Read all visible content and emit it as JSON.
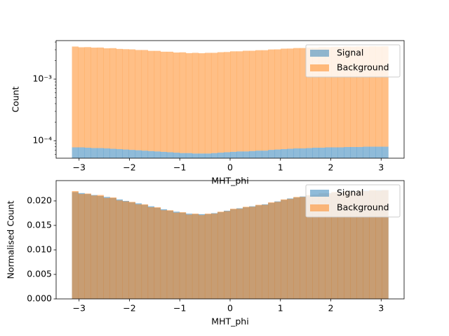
{
  "chart_data": [
    {
      "type": "histogram",
      "xlabel": "MHT_phi",
      "ylabel": "Count",
      "log_y": true,
      "stacked": true,
      "legend": "upper right",
      "xlim": [
        -3.456,
        3.456
      ],
      "xticks": [
        {
          "value": -3,
          "label": "−3"
        },
        {
          "value": -2,
          "label": "−2"
        },
        {
          "value": -1,
          "label": "−1"
        },
        0,
        1,
        2,
        3
      ],
      "ylim": [
        5.2e-05,
        0.00422
      ],
      "yticks": [
        {
          "value": 0.0001,
          "label": "10⁻⁴"
        },
        {
          "value": 0.001,
          "label": "10⁻³"
        }
      ],
      "bins": [
        -3.1416,
        -3.0159,
        -2.8903,
        -2.7646,
        -2.6389,
        -2.5133,
        -2.3876,
        -2.2619,
        -2.1363,
        -2.0106,
        -1.885,
        -1.7593,
        -1.6336,
        -1.508,
        -1.3823,
        -1.2566,
        -1.131,
        -1.0053,
        -0.8796,
        -0.754,
        -0.6283,
        -0.5027,
        -0.377,
        -0.2513,
        -0.1257,
        0,
        0.1257,
        0.2513,
        0.377,
        0.5027,
        0.6283,
        0.754,
        0.8796,
        1.0053,
        1.131,
        1.2566,
        1.3823,
        1.508,
        1.6336,
        1.7593,
        1.885,
        2.0106,
        2.1363,
        2.2619,
        2.3876,
        2.5133,
        2.6389,
        2.7646,
        2.8903,
        3.0159,
        3.1416
      ],
      "series": [
        {
          "name": "Signal",
          "color": "#1f77b4",
          "values": [
            7.8e-05,
            7.8e-05,
            7.7e-05,
            7.6e-05,
            7.6e-05,
            7.5e-05,
            7.4e-05,
            7.3e-05,
            7.2e-05,
            7.1e-05,
            7e-05,
            6.9e-05,
            6.8e-05,
            6.7e-05,
            6.6e-05,
            6.5e-05,
            6.4e-05,
            6.3e-05,
            6.3e-05,
            6.2e-05,
            6.2e-05,
            6.2e-05,
            6.3e-05,
            6.4e-05,
            6.5e-05,
            6.6e-05,
            6.7e-05,
            6.7e-05,
            6.8e-05,
            6.9e-05,
            6.9e-05,
            7.1e-05,
            7.2e-05,
            7.3e-05,
            7.4e-05,
            7.5e-05,
            7.5e-05,
            7.6e-05,
            7.7e-05,
            7.7e-05,
            7.8e-05,
            7.8e-05,
            7.8e-05,
            7.9e-05,
            7.9e-05,
            7.9e-05,
            8e-05,
            8e-05,
            8e-05,
            8e-05
          ]
        },
        {
          "name": "Background",
          "color": "#ff7f0e",
          "values": [
            0.0033,
            0.00321,
            0.00323,
            0.00317,
            0.00318,
            0.00309,
            0.00311,
            0.00302,
            0.00299,
            0.00297,
            0.0029,
            0.0029,
            0.00281,
            0.00281,
            0.00272,
            0.00272,
            0.00264,
            0.00266,
            0.00258,
            0.00261,
            0.00257,
            0.00261,
            0.00261,
            0.00267,
            0.00269,
            0.00276,
            0.00276,
            0.00282,
            0.00282,
            0.00288,
            0.00288,
            0.00296,
            0.00297,
            0.00305,
            0.00306,
            0.00312,
            0.00312,
            0.00318,
            0.00318,
            0.00324,
            0.00323,
            0.00327,
            0.00326,
            0.0033,
            0.00329,
            0.00332,
            0.0033,
            0.00333,
            0.00332,
            0.00333
          ]
        }
      ]
    },
    {
      "type": "histogram",
      "xlabel": "MHT_phi",
      "ylabel": "Normalised Count",
      "log_y": false,
      "stacked": false,
      "legend": "upper right",
      "xlim": [
        -3.456,
        3.456
      ],
      "xticks": [
        {
          "value": -3,
          "label": "−3"
        },
        {
          "value": -2,
          "label": "−2"
        },
        {
          "value": -1,
          "label": "−1"
        },
        0,
        1,
        2,
        3
      ],
      "ylim": [
        0,
        0.02414
      ],
      "yticks": [
        {
          "value": 0,
          "label": "0.000"
        },
        {
          "value": 0.005,
          "label": "0.005"
        },
        {
          "value": 0.01,
          "label": "0.010"
        },
        {
          "value": 0.015,
          "label": "0.015"
        },
        {
          "value": 0.02,
          "label": "0.020"
        }
      ],
      "bins": [
        -3.1416,
        -3.0159,
        -2.8903,
        -2.7646,
        -2.6389,
        -2.5133,
        -2.3876,
        -2.2619,
        -2.1363,
        -2.0106,
        -1.885,
        -1.7593,
        -1.6336,
        -1.508,
        -1.3823,
        -1.2566,
        -1.131,
        -1.0053,
        -0.8796,
        -0.754,
        -0.6283,
        -0.5027,
        -0.377,
        -0.2513,
        -0.1257,
        0,
        0.1257,
        0.2513,
        0.377,
        0.5027,
        0.6283,
        0.754,
        0.8796,
        1.0053,
        1.131,
        1.2566,
        1.3823,
        1.508,
        1.6336,
        1.7593,
        1.885,
        2.0106,
        2.1363,
        2.2619,
        2.3876,
        2.5133,
        2.6389,
        2.7646,
        2.8903,
        3.0159,
        3.1416
      ],
      "series": [
        {
          "name": "Signal",
          "color": "#1f77b4",
          "values": [
            0.0218,
            0.0216,
            0.0214,
            0.0212,
            0.021,
            0.0208,
            0.0206,
            0.0203,
            0.02,
            0.0197,
            0.0195,
            0.0192,
            0.0189,
            0.0186,
            0.0183,
            0.018,
            0.0178,
            0.0176,
            0.0174,
            0.0173,
            0.0173,
            0.0173,
            0.0175,
            0.0177,
            0.018,
            0.0183,
            0.0185,
            0.0187,
            0.0189,
            0.0191,
            0.0193,
            0.0196,
            0.0199,
            0.0202,
            0.0205,
            0.0207,
            0.0209,
            0.0211,
            0.0213,
            0.0215,
            0.0216,
            0.0217,
            0.0218,
            0.0219,
            0.022,
            0.022,
            0.0221,
            0.0221,
            0.0222,
            0.0222
          ]
        },
        {
          "name": "Background",
          "color": "#ff7f0e",
          "values": [
            0.022,
            0.0214,
            0.0215,
            0.0211,
            0.0212,
            0.0206,
            0.0207,
            0.0201,
            0.0199,
            0.0198,
            0.0193,
            0.0193,
            0.0187,
            0.0187,
            0.0181,
            0.0181,
            0.0176,
            0.0177,
            0.0172,
            0.0174,
            0.0171,
            0.0174,
            0.0174,
            0.0178,
            0.0179,
            0.0184,
            0.0184,
            0.0188,
            0.0188,
            0.0192,
            0.0192,
            0.0197,
            0.0198,
            0.0203,
            0.0204,
            0.0208,
            0.0208,
            0.0212,
            0.0212,
            0.0216,
            0.0215,
            0.0218,
            0.0217,
            0.022,
            0.0219,
            0.0221,
            0.022,
            0.0222,
            0.0221,
            0.0222
          ]
        }
      ]
    }
  ]
}
